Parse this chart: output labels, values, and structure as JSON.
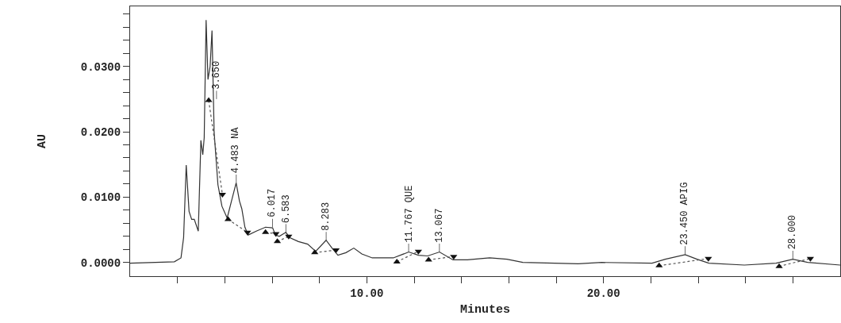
{
  "chart_data": {
    "type": "line",
    "xlabel": "Minutes",
    "ylabel": "AU",
    "xlim": [
      0,
      30
    ],
    "ylim": [
      -0.0021,
      0.0392
    ],
    "xticks": [
      {
        "value": 2,
        "label": null
      },
      {
        "value": 4,
        "label": null
      },
      {
        "value": 6,
        "label": null
      },
      {
        "value": 8,
        "label": null
      },
      {
        "value": 10,
        "label": "10.00"
      },
      {
        "value": 12,
        "label": null
      },
      {
        "value": 14,
        "label": null
      },
      {
        "value": 16,
        "label": null
      },
      {
        "value": 18,
        "label": null
      },
      {
        "value": 20,
        "label": "20.00"
      },
      {
        "value": 22,
        "label": null
      },
      {
        "value": 24,
        "label": null
      },
      {
        "value": 26,
        "label": null
      },
      {
        "value": 28,
        "label": null
      }
    ],
    "yticks": [
      {
        "value": 0,
        "label": "0.0000"
      },
      {
        "value": 0.002,
        "label": null
      },
      {
        "value": 0.004,
        "label": null
      },
      {
        "value": 0.006,
        "label": null
      },
      {
        "value": 0.008,
        "label": null
      },
      {
        "value": 0.01,
        "label": "0.0100"
      },
      {
        "value": 0.012,
        "label": null
      },
      {
        "value": 0.014,
        "label": null
      },
      {
        "value": 0.016,
        "label": null
      },
      {
        "value": 0.018,
        "label": null
      },
      {
        "value": 0.02,
        "label": "0.0200"
      },
      {
        "value": 0.022,
        "label": null
      },
      {
        "value": 0.024,
        "label": null
      },
      {
        "value": 0.026,
        "label": null
      },
      {
        "value": 0.028,
        "label": null
      },
      {
        "value": 0.03,
        "label": "0.0300"
      },
      {
        "value": 0.032,
        "label": null
      },
      {
        "value": 0.034,
        "label": null
      },
      {
        "value": 0.036,
        "label": null
      },
      {
        "value": 0.038,
        "label": null
      }
    ],
    "grid": false,
    "series": [
      {
        "line_style": "solid",
        "color": "#333333",
        "x": [
          0,
          1.87,
          2.15,
          2.26,
          2.37,
          2.49,
          2.6,
          2.71,
          2.88,
          2.99,
          3.07,
          3.13,
          3.21,
          3.29,
          3.38,
          3.46,
          3.55,
          3.71,
          3.88,
          4.1,
          4.48,
          4.62,
          4.72,
          4.85,
          4.99,
          5.33,
          5.72,
          6.02,
          6.14,
          6.3,
          6.58,
          6.75,
          7.11,
          7.5,
          7.84,
          8.28,
          8.55,
          8.78,
          9.12,
          9.45,
          9.79,
          10.23,
          11.12,
          11.77,
          12.18,
          12.57,
          13.07,
          13.64,
          14.25,
          15.19,
          15.92,
          16.59,
          18.93,
          19.93,
          22.05,
          22.61,
          23.45,
          23.95,
          24.45,
          25.95,
          27.29,
          28.0,
          28.63,
          30
        ],
        "values": [
          -0.0001,
          0.0001,
          0.0007,
          0.0038,
          0.0149,
          0.0078,
          0.0066,
          0.0066,
          0.0048,
          0.0187,
          0.0165,
          0.0191,
          0.0371,
          0.028,
          0.03,
          0.0355,
          0.0199,
          0.0119,
          0.0086,
          0.0068,
          0.0122,
          0.0094,
          0.0082,
          0.0054,
          0.0042,
          0.0048,
          0.0054,
          0.0053,
          0.0042,
          0.004,
          0.0046,
          0.0038,
          0.0032,
          0.0028,
          0.0017,
          0.0034,
          0.0021,
          0.0011,
          0.0015,
          0.0022,
          0.0013,
          0.0007,
          0.0007,
          0.0016,
          0.0011,
          0.001,
          0.0016,
          0.0004,
          0.0004,
          0.0007,
          0.0005,
          0.0,
          -0.0002,
          0.0,
          -0.0001,
          0.0005,
          0.0012,
          0.0005,
          -0.0001,
          -0.0004,
          -0.0001,
          0.0005,
          0.0,
          -0.0004
        ]
      },
      {
        "type": "line",
        "line_style": "dotted",
        "color": "#555555",
        "x": [
          3.32,
          3.9,
          null,
          4.14,
          4.96,
          null,
          5.72,
          6.16,
          null,
          6.22,
          6.7,
          null,
          7.8,
          8.7,
          null,
          11.27,
          12.18,
          null,
          12.61,
          13.67,
          null,
          22.35,
          24.43,
          null,
          27.42,
          28.74
        ],
        "values": [
          0.0248,
          0.0104,
          null,
          0.0066,
          0.0046,
          null,
          0.0046,
          0.0044,
          null,
          0.0032,
          0.004,
          null,
          0.0015,
          0.0019,
          null,
          0.0001,
          0.0017,
          null,
          0.0004,
          0.0009,
          null,
          -0.0005,
          0.0006,
          null,
          -0.0006,
          0.0006
        ]
      },
      {
        "type": "scatter",
        "marker": "triangle",
        "color": "#111111",
        "x": [
          3.32,
          4.14,
          5.72,
          6.22,
          7.8,
          11.27,
          12.61,
          22.35,
          27.42
        ],
        "values": [
          0.0248,
          0.0066,
          0.0046,
          0.0032,
          0.0015,
          0.0001,
          0.0004,
          -0.0005,
          -0.0006
        ]
      },
      {
        "type": "scatter",
        "marker": "triangle-down",
        "color": "#111111",
        "x": [
          3.9,
          4.96,
          6.16,
          6.7,
          8.7,
          12.18,
          13.67,
          24.43,
          28.74
        ],
        "values": [
          0.0104,
          0.0046,
          0.0044,
          0.004,
          0.0019,
          0.0017,
          0.0009,
          0.0006,
          0.0006
        ]
      }
    ],
    "annotations": [
      {
        "text": "3.650",
        "x": 3.65,
        "y": 0.025
      },
      {
        "text": "4.483 NA",
        "x": 4.483,
        "y": 0.0122
      },
      {
        "text": "6.017",
        "x": 6.017,
        "y": 0.0054
      },
      {
        "text": "6.583",
        "x": 6.583,
        "y": 0.0046
      },
      {
        "text": "8.283",
        "x": 8.283,
        "y": 0.0034
      },
      {
        "text": "11.767 QUE",
        "x": 11.767,
        "y": 0.0016
      },
      {
        "text": "13.067",
        "x": 13.067,
        "y": 0.0016
      },
      {
        "text": "23.450 APIG",
        "x": 23.45,
        "y": 0.0012
      },
      {
        "text": "28.000",
        "x": 28.0,
        "y": 0.0005
      }
    ]
  }
}
